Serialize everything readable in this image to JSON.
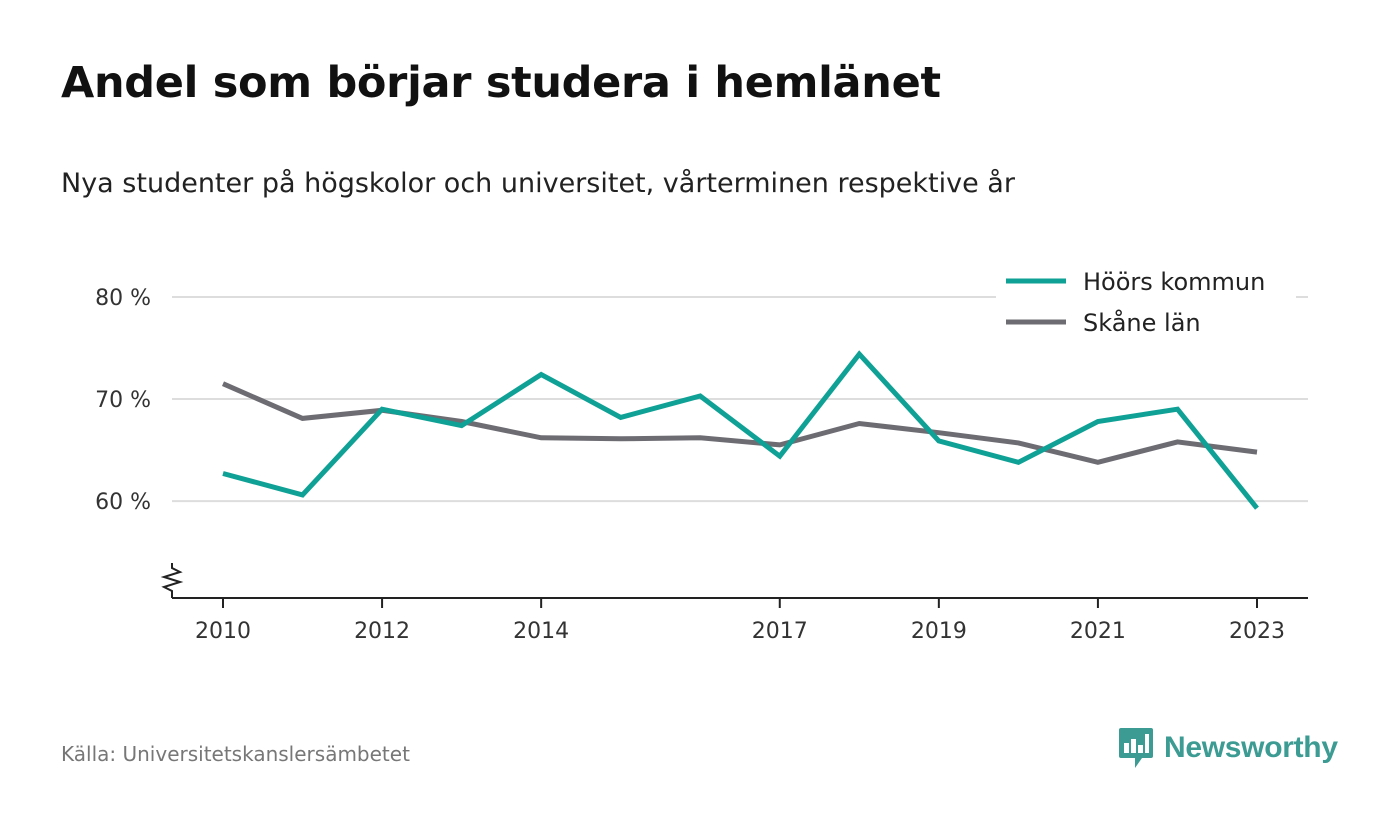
{
  "title": "Andel som börjar studera i hemlänet",
  "subtitle": "Nya studenter på högskolor och universitet, vårterminen respektive år",
  "source": "Källa: Universitetskanslersämbetet",
  "brand": {
    "name": "Newsworthy",
    "icon": "bar-chart-speech-bubble-icon",
    "color": "#3c9b93"
  },
  "chart_data": {
    "type": "line",
    "title": "Andel som börjar studera i hemlänet",
    "subtitle": "Nya studenter på högskolor och universitet, vårterminen respektive år",
    "x": [
      2010,
      2011,
      2012,
      2013,
      2014,
      2015,
      2016,
      2017,
      2018,
      2019,
      2020,
      2021,
      2022,
      2023
    ],
    "x_ticks": [
      "2010",
      "2012",
      "2014",
      "2017",
      "2019",
      "2021",
      "2023"
    ],
    "y_ticks": [
      60,
      70,
      80
    ],
    "y_tick_labels": [
      "60 %",
      "70 %",
      "80 %"
    ],
    "ylim": [
      50.5,
      80
    ],
    "y_axis_break": true,
    "grid": true,
    "legend_position": "top-right",
    "series": [
      {
        "name": "Höörs kommun",
        "color": "#0fa195",
        "values": [
          62.7,
          60.6,
          69.0,
          67.4,
          72.4,
          68.2,
          70.3,
          64.4,
          74.4,
          65.9,
          63.8,
          67.8,
          69.0,
          59.3
        ]
      },
      {
        "name": "Skåne län",
        "color": "#6d6c73",
        "values": [
          71.5,
          68.1,
          68.9,
          67.8,
          66.2,
          66.1,
          66.2,
          65.5,
          67.6,
          66.7,
          65.7,
          63.8,
          65.8,
          64.8
        ]
      }
    ]
  }
}
